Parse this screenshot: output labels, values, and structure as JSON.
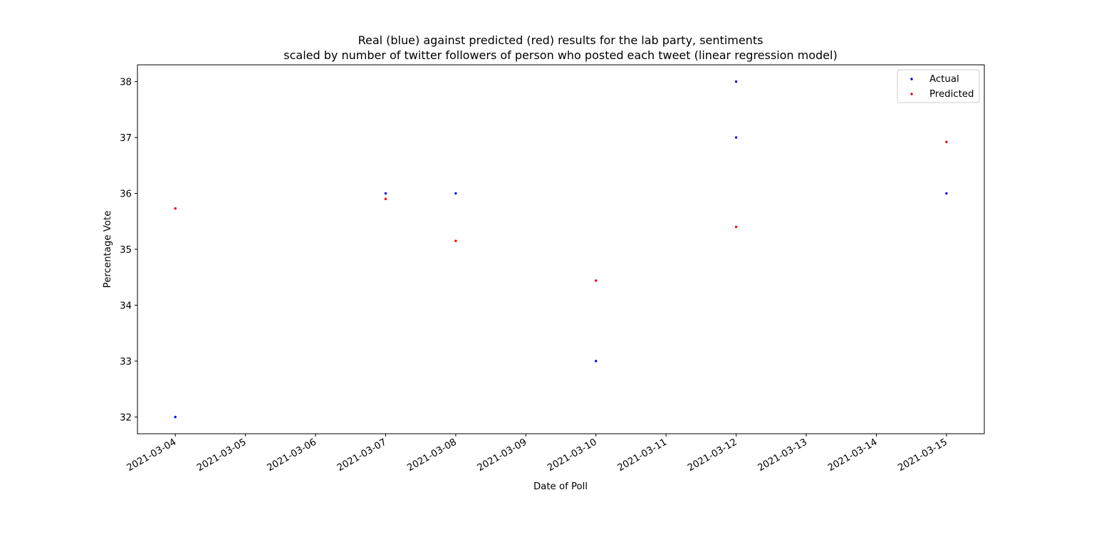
{
  "chart_data": {
    "type": "scatter",
    "title_lines": [
      "Real (blue) against predicted (red) results for the lab party, sentiments",
      "scaled by number of twitter followers of person who posted each tweet (linear regression model)"
    ],
    "xlabel": "Date of Poll",
    "ylabel": "Percentage Vote",
    "x_ticks": [
      "2021-03-04",
      "2021-03-05",
      "2021-03-06",
      "2021-03-07",
      "2021-03-08",
      "2021-03-09",
      "2021-03-10",
      "2021-03-11",
      "2021-03-12",
      "2021-03-13",
      "2021-03-14",
      "2021-03-15"
    ],
    "y_ticks": [
      32,
      33,
      34,
      35,
      36,
      37,
      38
    ],
    "xlim": [
      "2021-03-03",
      "2021-03-16"
    ],
    "ylim": [
      31.7,
      38.3
    ],
    "legend": {
      "placement": "top-right",
      "entries": [
        "Actual",
        "Predicted"
      ]
    },
    "grid": false,
    "series": [
      {
        "name": "Actual",
        "color": "#0000ff",
        "points": [
          {
            "x": "2021-03-04",
            "y": 32
          },
          {
            "x": "2021-03-07",
            "y": 36
          },
          {
            "x": "2021-03-08",
            "y": 36
          },
          {
            "x": "2021-03-10",
            "y": 33
          },
          {
            "x": "2021-03-12",
            "y": 38
          },
          {
            "x": "2021-03-12",
            "y": 37
          },
          {
            "x": "2021-03-15",
            "y": 36
          }
        ]
      },
      {
        "name": "Predicted",
        "color": "#ff0000",
        "points": [
          {
            "x": "2021-03-04",
            "y": 35.73
          },
          {
            "x": "2021-03-07",
            "y": 35.9
          },
          {
            "x": "2021-03-08",
            "y": 35.15
          },
          {
            "x": "2021-03-10",
            "y": 34.44
          },
          {
            "x": "2021-03-12",
            "y": 35.4
          },
          {
            "x": "2021-03-15",
            "y": 36.92
          }
        ]
      }
    ]
  }
}
